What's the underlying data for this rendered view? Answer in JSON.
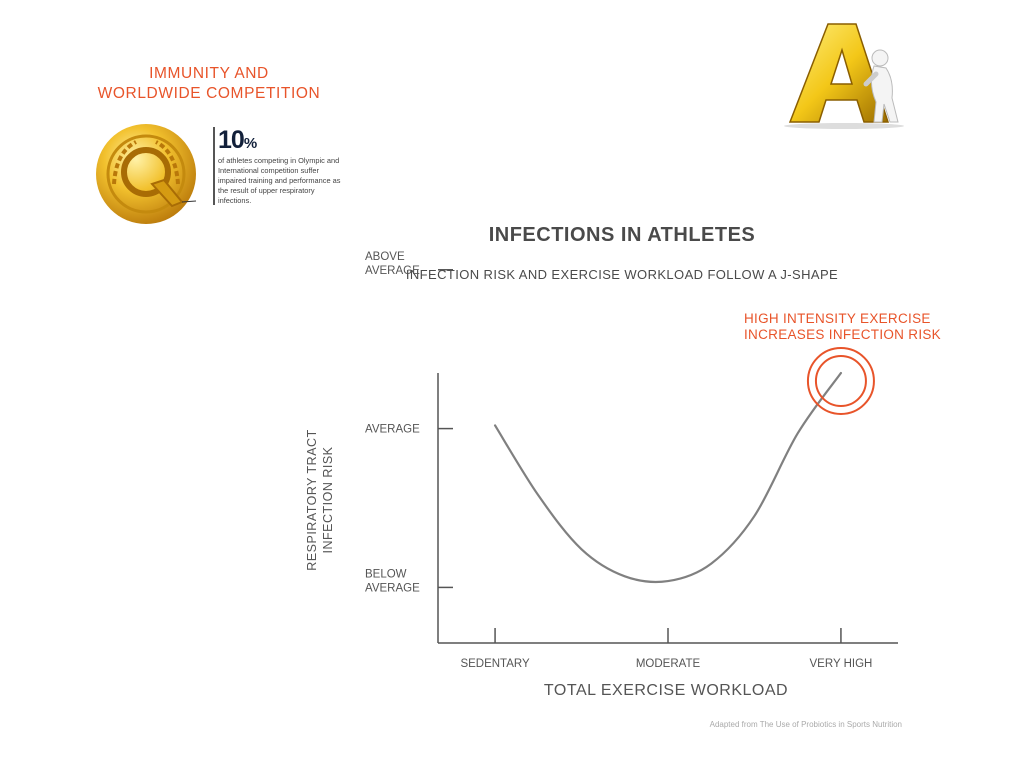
{
  "header": {
    "title": "IMMUNITY AND\nWORLDWIDE COMPETITION"
  },
  "stat": {
    "value": "10",
    "unit": "%",
    "description": "of athletes competing in Olympic and International competition suffer impaired training and performance as the result of upper respiratory infections."
  },
  "logo": {
    "letter": "A",
    "icon": "figure-leaning-on-letter-a"
  },
  "icons": {
    "medal": "gold-medal-q-icon",
    "logo": "letter-a-logo-icon"
  },
  "colors": {
    "accent": "#e8542a",
    "curve": "#808080",
    "axis": "#555555",
    "title_text": "#4a4a4a",
    "gold": "#e6a817",
    "navy": "#12203a"
  },
  "chart_data": {
    "type": "line",
    "title": "INFECTIONS IN ATHLETES",
    "subtitle": "INFECTION RISK AND EXERCISE WORKLOAD FOLLOW A J-SHAPE",
    "xlabel": "TOTAL EXERCISE WORKLOAD",
    "ylabel": "RESPIRATORY TRACT\nINFECTION RISK",
    "x_categories": [
      "SEDENTARY",
      "MODERATE",
      "VERY HIGH"
    ],
    "y_categories": [
      "BELOW\nAVERAGE",
      "AVERAGE",
      "ABOVE\nAVERAGE"
    ],
    "xlim": [
      -0.33,
      2.33
    ],
    "ylim": [
      -0.35,
      1.35
    ],
    "series": [
      {
        "values": [
          [
            0,
            1.02
          ],
          [
            0.25,
            0.58
          ],
          [
            0.5,
            0.24
          ],
          [
            0.75,
            0.07
          ],
          [
            1,
            0.04
          ],
          [
            1.25,
            0.15
          ],
          [
            1.5,
            0.45
          ],
          [
            1.75,
            0.97
          ],
          [
            2,
            1.35
          ]
        ]
      }
    ],
    "annotation": {
      "text": "HIGH INTENSITY EXERCISE\nINCREASES INFECTION RISK",
      "x": 2,
      "y": 1.35
    },
    "grid": false,
    "legend": "none"
  },
  "source": "Adapted from The Use of Probiotics in Sports Nutrition"
}
